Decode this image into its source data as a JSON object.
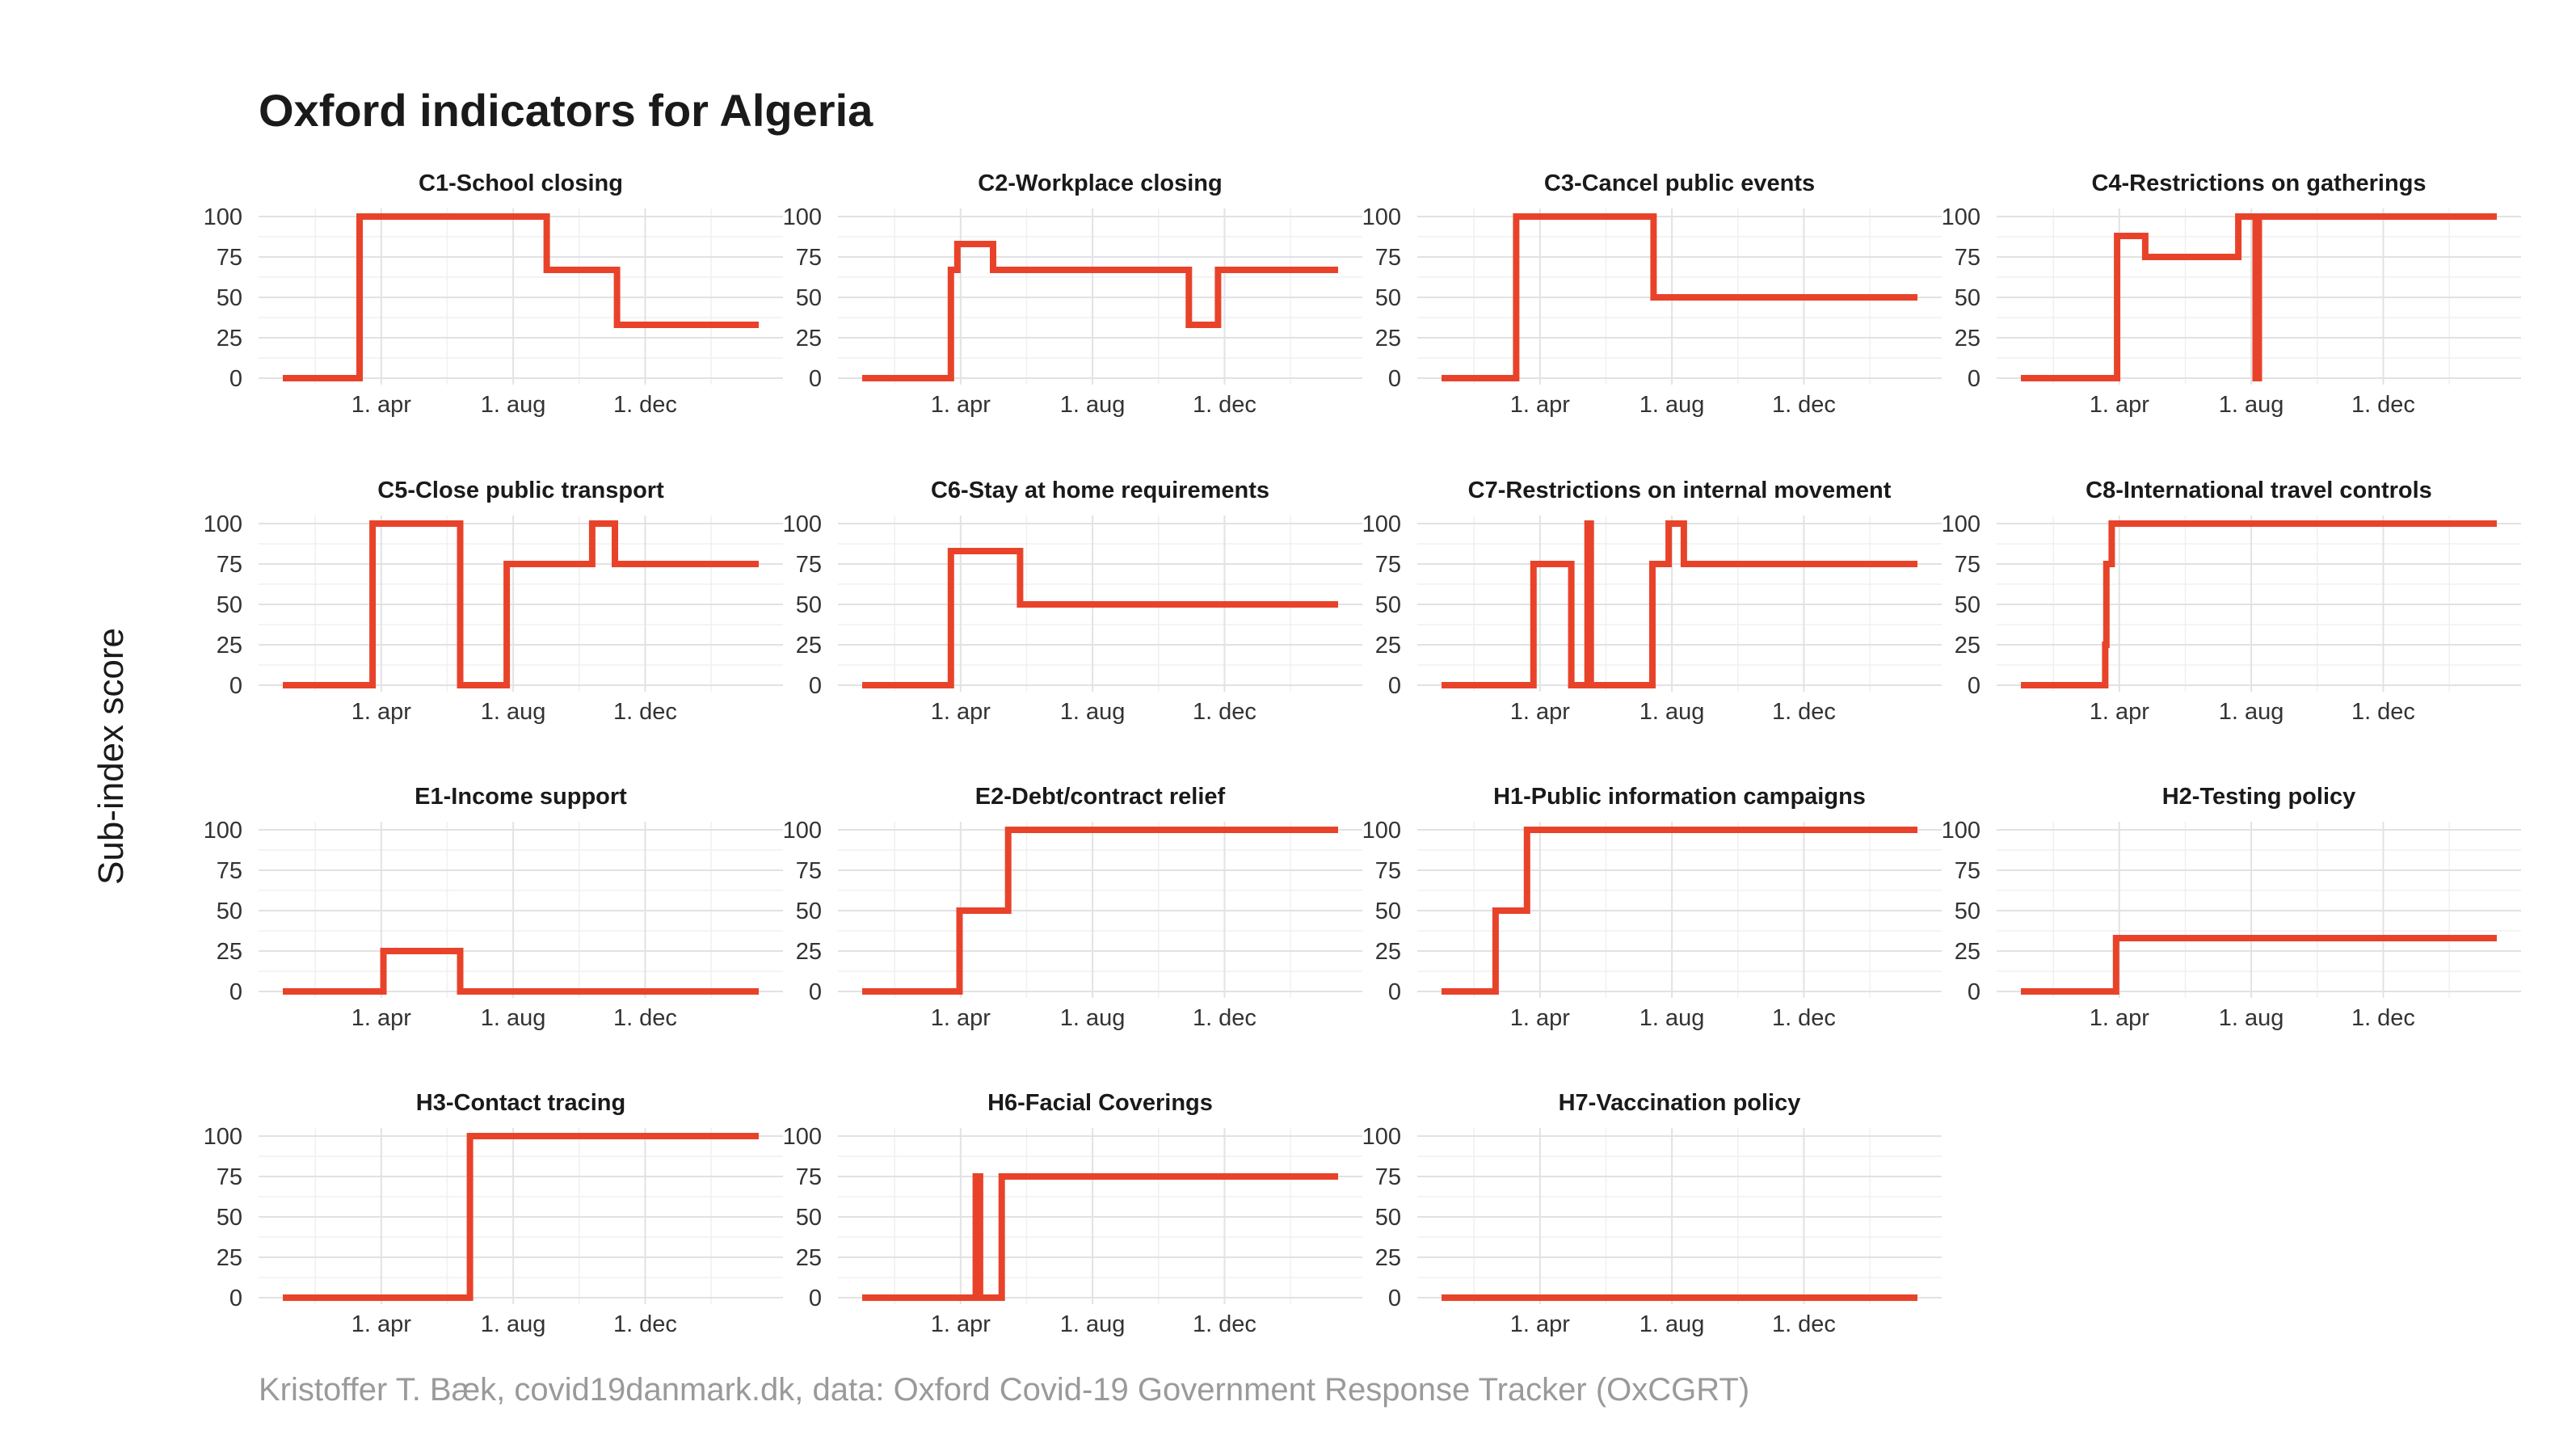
{
  "title": "Oxford indicators for Algeria",
  "ylabel": "Sub-index score",
  "caption": "Kristoffer T. Bæk, covid19danmark.dk, data: Oxford Covid-19 Government Response Tracker (OxCGRT)",
  "colors": {
    "line": "#e8432a"
  },
  "chart_data": {
    "type": "line",
    "layout": "small-multiples",
    "x_domain": [
      "2020-01-01",
      "2021-03-16"
    ],
    "ylim": [
      0,
      100
    ],
    "yticks": [
      0,
      25,
      50,
      75,
      100
    ],
    "xticks": [
      {
        "date": "2020-04-01",
        "label": "1. apr"
      },
      {
        "date": "2020-08-01",
        "label": "1. aug"
      },
      {
        "date": "2020-12-01",
        "label": "1. dec"
      }
    ],
    "grid": true,
    "panels": [
      {
        "name": "C1-School closing",
        "steps": [
          [
            "2020-01-01",
            0
          ],
          [
            "2020-03-12",
            100
          ],
          [
            "2020-09-01",
            67
          ],
          [
            "2020-11-05",
            33
          ],
          [
            "2021-03-16",
            33
          ]
        ]
      },
      {
        "name": "C2-Workplace closing",
        "steps": [
          [
            "2020-01-01",
            0
          ],
          [
            "2020-03-23",
            67
          ],
          [
            "2020-03-29",
            83
          ],
          [
            "2020-05-01",
            67
          ],
          [
            "2020-10-29",
            33
          ],
          [
            "2020-11-25",
            67
          ],
          [
            "2021-03-16",
            67
          ]
        ]
      },
      {
        "name": "C3-Cancel public events",
        "steps": [
          [
            "2020-01-01",
            0
          ],
          [
            "2020-03-10",
            100
          ],
          [
            "2020-07-15",
            50
          ],
          [
            "2021-03-16",
            50
          ]
        ]
      },
      {
        "name": "C4-Restrictions on gatherings",
        "steps": [
          [
            "2020-01-01",
            0
          ],
          [
            "2020-03-30",
            88
          ],
          [
            "2020-04-25",
            75
          ],
          [
            "2020-07-20",
            100
          ],
          [
            "2020-08-05",
            0
          ],
          [
            "2020-08-08",
            100
          ],
          [
            "2021-03-16",
            100
          ]
        ]
      },
      {
        "name": "C5-Close public transport",
        "steps": [
          [
            "2020-01-01",
            0
          ],
          [
            "2020-03-24",
            100
          ],
          [
            "2020-06-13",
            0
          ],
          [
            "2020-07-26",
            75
          ],
          [
            "2020-10-13",
            100
          ],
          [
            "2020-11-03",
            75
          ],
          [
            "2021-03-16",
            75
          ]
        ]
      },
      {
        "name": "C6-Stay at home requirements",
        "steps": [
          [
            "2020-01-01",
            0
          ],
          [
            "2020-03-23",
            83
          ],
          [
            "2020-05-26",
            50
          ],
          [
            "2021-03-16",
            50
          ]
        ]
      },
      {
        "name": "C7-Restrictions on internal movement",
        "steps": [
          [
            "2020-01-01",
            0
          ],
          [
            "2020-03-26",
            75
          ],
          [
            "2020-04-30",
            0
          ],
          [
            "2020-05-15",
            100
          ],
          [
            "2020-05-18",
            0
          ],
          [
            "2020-07-14",
            75
          ],
          [
            "2020-07-29",
            100
          ],
          [
            "2020-08-12",
            75
          ],
          [
            "2021-03-16",
            75
          ]
        ]
      },
      {
        "name": "C8-International travel controls",
        "steps": [
          [
            "2020-01-01",
            0
          ],
          [
            "2020-03-19",
            25
          ],
          [
            "2020-03-20",
            75
          ],
          [
            "2020-03-25",
            100
          ],
          [
            "2021-03-16",
            100
          ]
        ]
      },
      {
        "name": "E1-Income support",
        "steps": [
          [
            "2020-01-01",
            0
          ],
          [
            "2020-04-03",
            25
          ],
          [
            "2020-06-13",
            0
          ],
          [
            "2021-03-16",
            0
          ]
        ]
      },
      {
        "name": "E2-Debt/contract relief",
        "steps": [
          [
            "2020-01-01",
            0
          ],
          [
            "2020-03-31",
            50
          ],
          [
            "2020-05-15",
            100
          ],
          [
            "2021-03-16",
            100
          ]
        ]
      },
      {
        "name": "H1-Public information campaigns",
        "steps": [
          [
            "2020-01-01",
            0
          ],
          [
            "2020-02-20",
            50
          ],
          [
            "2020-03-20",
            100
          ],
          [
            "2021-03-16",
            100
          ]
        ]
      },
      {
        "name": "H2-Testing policy",
        "steps": [
          [
            "2020-01-01",
            0
          ],
          [
            "2020-03-29",
            33
          ],
          [
            "2021-03-16",
            33
          ]
        ]
      },
      {
        "name": "H3-Contact tracing",
        "steps": [
          [
            "2020-01-01",
            0
          ],
          [
            "2020-06-22",
            100
          ],
          [
            "2021-03-16",
            100
          ]
        ]
      },
      {
        "name": "H6-Facial Coverings",
        "steps": [
          [
            "2020-01-01",
            0
          ],
          [
            "2020-04-15",
            75
          ],
          [
            "2020-04-19",
            0
          ],
          [
            "2020-05-09",
            75
          ],
          [
            "2021-03-16",
            75
          ]
        ]
      },
      {
        "name": "H7-Vaccination policy",
        "steps": [
          [
            "2020-01-01",
            0
          ],
          [
            "2021-03-16",
            0
          ]
        ]
      }
    ]
  }
}
